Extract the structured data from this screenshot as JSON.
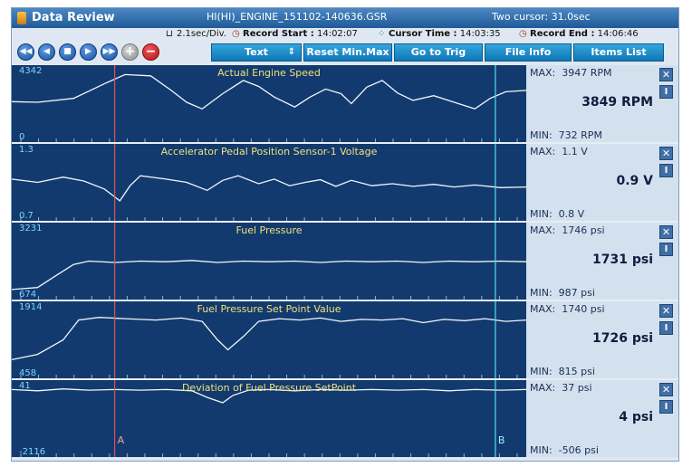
{
  "window": {
    "title": "Data Review",
    "file": "HI(HI)_ENGINE_151102-140636.GSR",
    "two_cursor": "Two cursor: 31.0sec"
  },
  "info": {
    "scale": "2.1sec/Div.",
    "record_start_label": "Record Start :",
    "record_start": "14:02:07",
    "cursor_time_label": "Cursor Time :",
    "cursor_time": "14:03:35",
    "record_end_label": "Record End :",
    "record_end": "14:06:46"
  },
  "toolbar": {
    "text_label": "Text",
    "reset_label": "Reset Min.Max",
    "trig_label": "Go to Trig",
    "file_label": "File Info",
    "items_label": "Items List"
  },
  "labels": {
    "max": "MAX:",
    "min": "MIN:",
    "cursor_a": "A",
    "cursor_b": "B"
  },
  "channels": [
    {
      "name": "Actual Engine Speed",
      "ymax": "4342",
      "ymin": "0",
      "max": "3947 RPM",
      "current": "3849 RPM",
      "min": "732 RPM",
      "points": [
        [
          0,
          0.47
        ],
        [
          0.05,
          0.48
        ],
        [
          0.12,
          0.42
        ],
        [
          0.18,
          0.2
        ],
        [
          0.22,
          0.06
        ],
        [
          0.27,
          0.08
        ],
        [
          0.31,
          0.3
        ],
        [
          0.34,
          0.48
        ],
        [
          0.37,
          0.58
        ],
        [
          0.41,
          0.35
        ],
        [
          0.45,
          0.15
        ],
        [
          0.48,
          0.24
        ],
        [
          0.51,
          0.4
        ],
        [
          0.55,
          0.55
        ],
        [
          0.58,
          0.4
        ],
        [
          0.61,
          0.28
        ],
        [
          0.64,
          0.35
        ],
        [
          0.66,
          0.5
        ],
        [
          0.69,
          0.25
        ],
        [
          0.72,
          0.15
        ],
        [
          0.75,
          0.34
        ],
        [
          0.78,
          0.45
        ],
        [
          0.82,
          0.38
        ],
        [
          0.86,
          0.48
        ],
        [
          0.9,
          0.58
        ],
        [
          0.93,
          0.42
        ],
        [
          0.96,
          0.32
        ],
        [
          1,
          0.3
        ]
      ]
    },
    {
      "name": "Accelerator Pedal Position Sensor-1 Voltage",
      "ymax": "1.3",
      "ymin": "0.7",
      "max": "1.1 V",
      "current": "0.9 V",
      "min": "0.8 V",
      "points": [
        [
          0,
          0.45
        ],
        [
          0.05,
          0.5
        ],
        [
          0.1,
          0.42
        ],
        [
          0.14,
          0.48
        ],
        [
          0.18,
          0.6
        ],
        [
          0.21,
          0.78
        ],
        [
          0.23,
          0.55
        ],
        [
          0.25,
          0.4
        ],
        [
          0.3,
          0.45
        ],
        [
          0.34,
          0.5
        ],
        [
          0.38,
          0.62
        ],
        [
          0.41,
          0.47
        ],
        [
          0.44,
          0.4
        ],
        [
          0.48,
          0.52
        ],
        [
          0.51,
          0.45
        ],
        [
          0.54,
          0.55
        ],
        [
          0.57,
          0.5
        ],
        [
          0.6,
          0.46
        ],
        [
          0.63,
          0.56
        ],
        [
          0.66,
          0.47
        ],
        [
          0.7,
          0.55
        ],
        [
          0.74,
          0.52
        ],
        [
          0.78,
          0.56
        ],
        [
          0.82,
          0.53
        ],
        [
          0.86,
          0.57
        ],
        [
          0.9,
          0.54
        ],
        [
          0.95,
          0.58
        ],
        [
          1,
          0.57
        ]
      ]
    },
    {
      "name": "Fuel Pressure",
      "ymax": "3231",
      "ymin": "674",
      "max": "1746 psi",
      "current": "1731 psi",
      "min": "987 psi",
      "points": [
        [
          0,
          0.93
        ],
        [
          0.05,
          0.9
        ],
        [
          0.09,
          0.7
        ],
        [
          0.12,
          0.55
        ],
        [
          0.15,
          0.5
        ],
        [
          0.2,
          0.52
        ],
        [
          0.25,
          0.5
        ],
        [
          0.3,
          0.51
        ],
        [
          0.35,
          0.49
        ],
        [
          0.4,
          0.52
        ],
        [
          0.45,
          0.5
        ],
        [
          0.5,
          0.51
        ],
        [
          0.55,
          0.5
        ],
        [
          0.6,
          0.52
        ],
        [
          0.65,
          0.5
        ],
        [
          0.7,
          0.51
        ],
        [
          0.75,
          0.5
        ],
        [
          0.8,
          0.52
        ],
        [
          0.85,
          0.5
        ],
        [
          0.9,
          0.51
        ],
        [
          0.95,
          0.5
        ],
        [
          1,
          0.51
        ]
      ]
    },
    {
      "name": "Fuel Pressure Set Point Value",
      "ymax": "1914",
      "ymin": "458",
      "max": "1740 psi",
      "current": "1726 psi",
      "min": "815 psi",
      "points": [
        [
          0,
          0.8
        ],
        [
          0.05,
          0.72
        ],
        [
          0.1,
          0.5
        ],
        [
          0.13,
          0.2
        ],
        [
          0.17,
          0.16
        ],
        [
          0.22,
          0.18
        ],
        [
          0.28,
          0.2
        ],
        [
          0.33,
          0.17
        ],
        [
          0.37,
          0.22
        ],
        [
          0.4,
          0.5
        ],
        [
          0.42,
          0.65
        ],
        [
          0.45,
          0.45
        ],
        [
          0.48,
          0.22
        ],
        [
          0.52,
          0.18
        ],
        [
          0.56,
          0.2
        ],
        [
          0.6,
          0.17
        ],
        [
          0.64,
          0.22
        ],
        [
          0.68,
          0.19
        ],
        [
          0.72,
          0.2
        ],
        [
          0.76,
          0.18
        ],
        [
          0.8,
          0.24
        ],
        [
          0.84,
          0.19
        ],
        [
          0.88,
          0.21
        ],
        [
          0.92,
          0.18
        ],
        [
          0.96,
          0.22
        ],
        [
          1,
          0.2
        ]
      ]
    },
    {
      "name": "Deviation of Fuel Pressure SetPoint",
      "ymax": "41",
      "ymin": "-2116",
      "max": "37 psi",
      "current": "4 psi",
      "min": "-506 psi",
      "points": [
        [
          0,
          0.06
        ],
        [
          0.05,
          0.08
        ],
        [
          0.1,
          0.05
        ],
        [
          0.15,
          0.07
        ],
        [
          0.2,
          0.06
        ],
        [
          0.25,
          0.07
        ],
        [
          0.3,
          0.06
        ],
        [
          0.35,
          0.08
        ],
        [
          0.38,
          0.18
        ],
        [
          0.41,
          0.26
        ],
        [
          0.43,
          0.15
        ],
        [
          0.46,
          0.07
        ],
        [
          0.5,
          0.06
        ],
        [
          0.55,
          0.08
        ],
        [
          0.6,
          0.06
        ],
        [
          0.65,
          0.07
        ],
        [
          0.7,
          0.06
        ],
        [
          0.75,
          0.07
        ],
        [
          0.8,
          0.06
        ],
        [
          0.85,
          0.08
        ],
        [
          0.9,
          0.06
        ],
        [
          0.95,
          0.07
        ],
        [
          1,
          0.06
        ]
      ]
    }
  ],
  "cursors": {
    "a_fraction": 0.2,
    "b_fraction": 0.94
  }
}
